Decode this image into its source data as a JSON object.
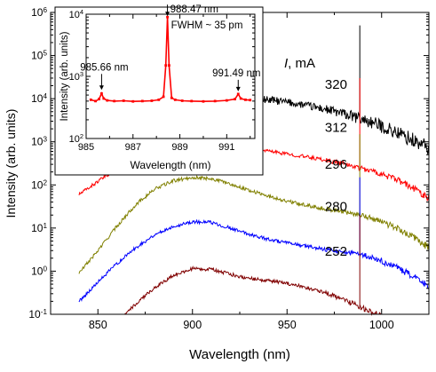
{
  "chart_data": [
    {
      "type": "line",
      "xlabel": "Wavelength (nm)",
      "ylabel": "Intensity (arb. units)",
      "log_y": true,
      "xlim": [
        825,
        1025
      ],
      "ylim": [
        0.1,
        1000000
      ],
      "x_ticks": [
        850,
        900,
        950,
        1000
      ],
      "x_tick_labels": [
        "850",
        "900",
        "950",
        "1000"
      ],
      "y_ticks": [
        0.1,
        1,
        10,
        100,
        1000,
        10000,
        100000,
        1000000
      ],
      "y_tick_labels": [
        {
          "base": "10",
          "exp": "-1"
        },
        {
          "base": "10",
          "exp": "0"
        },
        {
          "base": "10",
          "exp": "1"
        },
        {
          "base": "10",
          "exp": "2"
        },
        {
          "base": "10",
          "exp": "3"
        },
        {
          "base": "10",
          "exp": "4"
        },
        {
          "base": "10",
          "exp": "5"
        },
        {
          "base": "10",
          "exp": "6"
        }
      ],
      "legend_title_symbol": "I",
      "legend_title_rest": ", mA",
      "x": [
        840,
        850,
        860,
        870,
        880,
        890,
        900,
        910,
        920,
        930,
        940,
        950,
        960,
        970,
        980,
        990,
        1000,
        1010,
        1020,
        1025
      ],
      "series": [
        {
          "name": "320",
          "color": "#000000",
          "label_x": 990,
          "label_y": 17000,
          "values": [
            5000,
            7000,
            8500,
            9800,
            10800,
            11500,
            11700,
            11600,
            11000,
            10300,
            9400,
            8300,
            7000,
            5700,
            4400,
            3300,
            2300,
            1500,
            900,
            700
          ]
        },
        {
          "name": "312",
          "color": "#ff0000",
          "label_x": 990,
          "label_y": 1700,
          "values": [
            60,
            120,
            240,
            420,
            650,
            820,
            900,
            880,
            800,
            700,
            610,
            520,
            450,
            380,
            310,
            240,
            180,
            120,
            70,
            50
          ]
        },
        {
          "name": "296",
          "color": "#808000",
          "label_x": 990,
          "label_y": 240,
          "values": [
            0.9,
            3,
            11,
            35,
            80,
            125,
            150,
            140,
            105,
            75,
            55,
            42,
            34,
            28,
            24,
            20,
            14,
            9,
            5,
            3.5
          ]
        },
        {
          "name": "280",
          "color": "#0000ff",
          "label_x": 990,
          "label_y": 25,
          "values": [
            0.2,
            0.55,
            1.5,
            3.5,
            7,
            11,
            14,
            13.5,
            10,
            7.2,
            5.5,
            4.5,
            3.8,
            3.2,
            2.8,
            2.4,
            1.7,
            1.1,
            0.6,
            0.45
          ]
        },
        {
          "name": "252",
          "color": "#800000",
          "label_x": 990,
          "label_y": 2.3,
          "values": [
            null,
            null,
            0.07,
            0.17,
            0.42,
            0.8,
            1.15,
            1.1,
            0.85,
            0.68,
            0.6,
            0.52,
            0.42,
            0.32,
            0.22,
            0.14,
            0.09,
            0.06,
            null,
            null
          ]
        }
      ],
      "spike_x": 988.47
    },
    {
      "type": "line",
      "inset": true,
      "xlabel": "Wavelength (nm)",
      "ylabel": "Intensity (arb. units)",
      "log_y": true,
      "xlim": [
        985,
        992.2
      ],
      "ylim": [
        100,
        10000
      ],
      "x_ticks": [
        985,
        987,
        989,
        991
      ],
      "x_tick_labels": [
        "985",
        "987",
        "989",
        "991"
      ],
      "y_ticks": [
        100,
        1000,
        10000
      ],
      "y_tick_labels": [
        {
          "base": "10",
          "exp": "2"
        },
        {
          "base": "10",
          "exp": "3"
        },
        {
          "base": "10",
          "exp": "4"
        }
      ],
      "color": "#ff0000",
      "x": [
        985.2,
        985.4,
        985.55,
        985.66,
        985.75,
        985.9,
        986.2,
        986.6,
        987.0,
        987.4,
        987.8,
        988.1,
        988.3,
        988.4,
        988.47,
        988.54,
        988.65,
        988.8,
        989.1,
        989.5,
        990.0,
        990.5,
        991.0,
        991.35,
        991.49,
        991.6,
        991.8,
        992.0
      ],
      "values": [
        420,
        400,
        430,
        530,
        440,
        410,
        400,
        405,
        395,
        400,
        405,
        420,
        470,
        1500,
        9000,
        1500,
        450,
        420,
        405,
        400,
        395,
        400,
        410,
        430,
        520,
        440,
        420,
        415
      ],
      "annotations": [
        {
          "text": "985.66 nm",
          "x": 985.66,
          "y": 530
        },
        {
          "text": "988.47 nm",
          "x": 988.47,
          "y": 9000
        },
        {
          "text": "FWHM ~ 35 pm",
          "x": 988.47,
          "y": 9000
        },
        {
          "text": "991.49 nm",
          "x": 991.49,
          "y": 520
        }
      ]
    }
  ]
}
